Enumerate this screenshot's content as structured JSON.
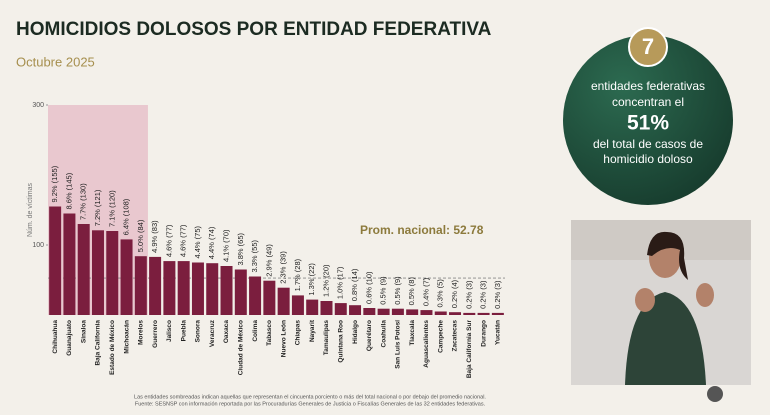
{
  "chart_data": {
    "type": "bar",
    "title": "HOMICIDIOS DOLOSOS POR ENTIDAD FEDERATIVA",
    "subtitle": "Octubre 2025",
    "y_label": "Núm. de víctimas",
    "categories": [
      "Chihuahua",
      "Guanajuato",
      "Sinaloa",
      "Baja California",
      "Estado de México",
      "Michoacán",
      "Morelos",
      "Guerrero",
      "Jalisco",
      "Puebla",
      "Sonora",
      "Veracruz",
      "Oaxaca",
      "Ciudad de México",
      "Colima",
      "Tabasco",
      "Nuevo León",
      "Chiapas",
      "Nayarit",
      "Tamaulipas",
      "Quintana Roo",
      "Hidalgo",
      "Querétaro",
      "Coahuila",
      "San Luis Potosí",
      "Tlaxcala",
      "Aguascalientes",
      "Campeche",
      "Zacatecas",
      "Baja California Sur",
      "Durango",
      "Yucatán"
    ],
    "values": [
      155,
      145,
      130,
      121,
      120,
      108,
      84,
      83,
      77,
      77,
      75,
      74,
      70,
      65,
      55,
      49,
      39,
      28,
      22,
      20,
      17,
      14,
      10,
      9,
      9,
      8,
      7,
      5,
      4,
      3,
      3,
      3
    ],
    "value_labels": [
      "9.2% (155)",
      "8.6% (145)",
      "7.7% (130)",
      "7.2% (121)",
      "7.1% (120)",
      "6.4% (108)",
      "5.0% (84)",
      "4.9% (83)",
      "4.6% (77)",
      "4.6% (77)",
      "4.4% (75)",
      "4.4% (74)",
      "4.1% (70)",
      "3.8% (65)",
      "3.3% (55)",
      "2.9% (49)",
      "2.3% (39)",
      "1.7% (28)",
      "1.3% (22)",
      "1.2% (20)",
      "1.0% (17)",
      "0.8% (14)",
      "0.6% (10)",
      "0.5% (9)",
      "0.5% (9)",
      "0.5% (8)",
      "0.4% (7)",
      "0.3% (5)",
      "0.2% (4)",
      "0.2% (3)",
      "0.2% (3)",
      "0.2% (3)"
    ],
    "color": "#7b1e3e",
    "shade_color": "#e9c8cf",
    "ylim": [
      0,
      300
    ],
    "yticks": [
      100,
      300
    ],
    "average": 52.78,
    "average_label": "Prom. nacional: 52.78",
    "footnote": [
      "Las entidades sombreadas indican aquellas que representan el cincuenta porciento o más del total nacional o por debajo del promedio nacional.",
      "Fuente: SESNSP con información reportada por las Procuradurías Generales de Justicia o Fiscalías Generales de las 32 entidades federativas."
    ]
  },
  "highlight": {
    "count": 7,
    "line1": "entidades federativas",
    "line2": "concentran el",
    "percent": "51%",
    "line3": "del total de casos de",
    "line4": "homicidio doloso"
  }
}
